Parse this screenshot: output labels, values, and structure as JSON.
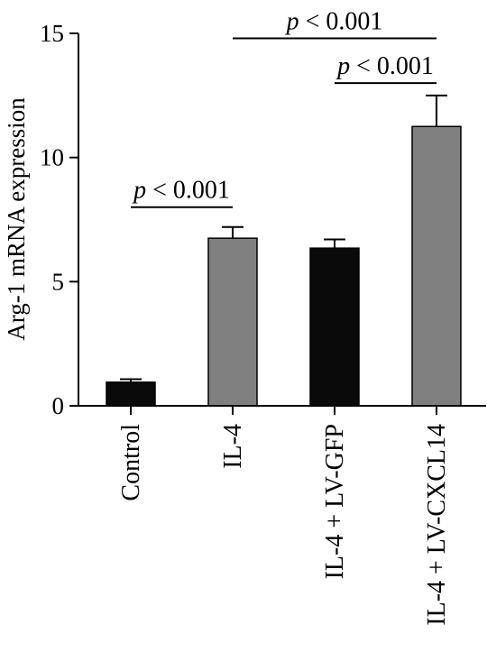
{
  "chart_data": {
    "type": "bar",
    "title": "",
    "xlabel": "",
    "ylabel": "Arg-1 mRNA expression",
    "ylim": [
      0,
      15
    ],
    "yticks": [
      0,
      5,
      10,
      15
    ],
    "categories": [
      "Control",
      "IL-4",
      "IL-4 + LV-GFP",
      "IL-4 + LV-CXCL14"
    ],
    "values": [
      0.95,
      6.75,
      6.35,
      11.25
    ],
    "errors": [
      0.12,
      0.45,
      0.35,
      1.25
    ],
    "colors": [
      "#0a0a0a",
      "#808080",
      "#0a0a0a",
      "#808080"
    ],
    "grid": false,
    "legend": "none",
    "significance": [
      {
        "from": 0,
        "to": 1,
        "y": 8.0,
        "label_p": "p",
        "label_rest": " < 0.001"
      },
      {
        "from": 2,
        "to": 3,
        "y": 13.0,
        "label_p": "p",
        "label_rest": " < 0.001"
      },
      {
        "from": 1,
        "to": 3,
        "y": 14.8,
        "label_p": "p",
        "label_rest": " < 0.001"
      }
    ]
  }
}
